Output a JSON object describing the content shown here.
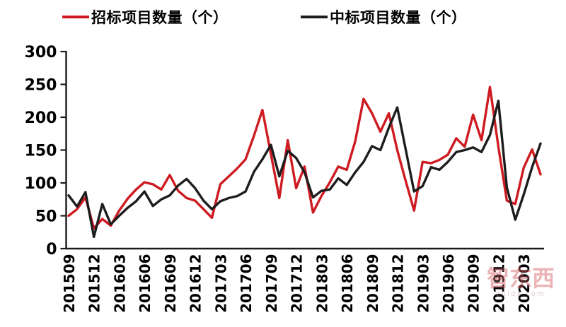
{
  "legend": {
    "series1_label": "招标项目数量（个）",
    "series2_label": "中标项目数量（个）"
  },
  "watermark": {
    "logo": "智东西",
    "domain": "zhidx.com"
  },
  "colors": {
    "series1": "#ce1b21",
    "series2": "#1d1d1d",
    "axis": "#1a1a1a",
    "tick_text": "#000000"
  },
  "chart_data": {
    "type": "line",
    "title": "",
    "xlabel": "",
    "ylabel": "",
    "ylim": [
      0,
      300
    ],
    "y_ticks": [
      0,
      50,
      100,
      150,
      200,
      250,
      300
    ],
    "grid": false,
    "legend_position": "top",
    "x_tick_every": 3,
    "x": [
      "201509",
      "201510",
      "201511",
      "201512",
      "201601",
      "201602",
      "201603",
      "201604",
      "201605",
      "201606",
      "201607",
      "201608",
      "201609",
      "201610",
      "201611",
      "201612",
      "201701",
      "201702",
      "201703",
      "201704",
      "201705",
      "201706",
      "201707",
      "201708",
      "201709",
      "201710",
      "201711",
      "201712",
      "201801",
      "201802",
      "201803",
      "201804",
      "201805",
      "201806",
      "201807",
      "201808",
      "201809",
      "201810",
      "201811",
      "201812",
      "201901",
      "201902",
      "201903",
      "201904",
      "201905",
      "201906",
      "201907",
      "201908",
      "201909",
      "201910",
      "201911",
      "201912",
      "202001",
      "202002",
      "202003",
      "202004",
      "202005"
    ],
    "series": [
      {
        "name": "招标项目数量（个）",
        "color": "#ce1b21",
        "values": [
          50,
          60,
          78,
          31,
          45,
          35,
          58,
          76,
          90,
          101,
          98,
          90,
          112,
          88,
          77,
          73,
          60,
          47,
          98,
          110,
          122,
          136,
          172,
          211,
          144,
          77,
          165,
          92,
          125,
          55,
          80,
          101,
          125,
          120,
          163,
          228,
          206,
          178,
          206,
          150,
          103,
          58,
          132,
          130,
          135,
          143,
          168,
          155,
          204,
          165,
          246,
          155,
          73,
          68,
          123,
          151,
          113
        ]
      },
      {
        "name": "中标项目数量（个）",
        "color": "#1d1d1d",
        "values": [
          81,
          64,
          86,
          18,
          68,
          37,
          50,
          62,
          72,
          87,
          65,
          75,
          81,
          96,
          106,
          92,
          73,
          60,
          72,
          77,
          80,
          87,
          117,
          136,
          158,
          110,
          149,
          138,
          116,
          78,
          88,
          90,
          107,
          97,
          116,
          132,
          156,
          150,
          184,
          215,
          151,
          87,
          95,
          124,
          120,
          132,
          147,
          150,
          154,
          147,
          173,
          225,
          93,
          44,
          82,
          124,
          160
        ]
      }
    ]
  }
}
